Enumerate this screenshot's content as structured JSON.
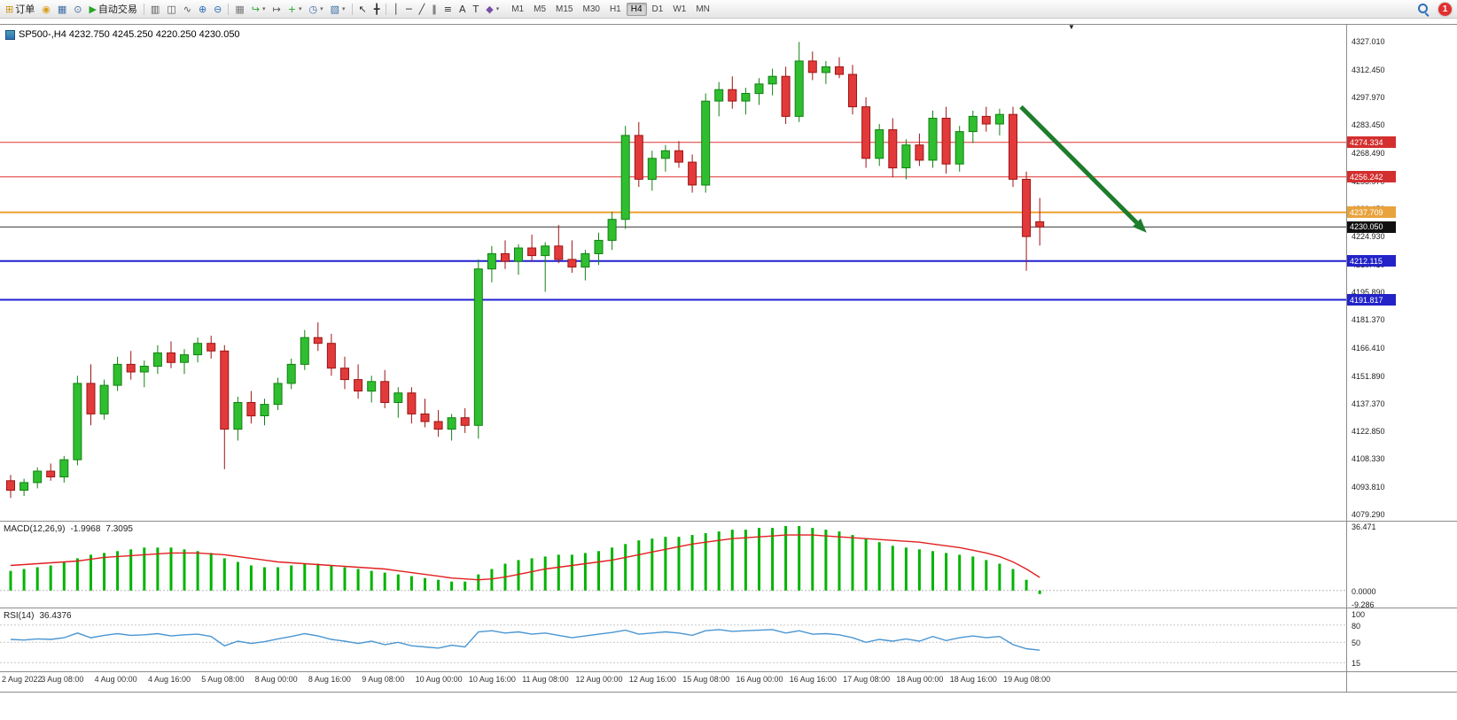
{
  "toolbar": {
    "notification_count": "1",
    "timeframes": [
      "M1",
      "M5",
      "M15",
      "M30",
      "H1",
      "H4",
      "D1",
      "W1",
      "MN"
    ],
    "active_timeframe": "H4",
    "tools": [
      {
        "name": "new-order-button",
        "glyph": "⊞",
        "color": "#C89010",
        "label": "订单"
      },
      {
        "name": "alerts-button",
        "glyph": "◉",
        "color": "#D8A020"
      },
      {
        "name": "market-watch-button",
        "glyph": "▦",
        "color": "#3A6EA5"
      },
      {
        "name": "data-window-button",
        "glyph": "⊙",
        "color": "#3A6EA5"
      },
      {
        "name": "autotrade-button",
        "glyph": "▶",
        "color": "#28A428",
        "label": "自动交易"
      },
      {
        "sep": true
      },
      {
        "name": "bar-chart-button",
        "glyph": "▥",
        "color": "#555555"
      },
      {
        "name": "candlestick-chart-button",
        "glyph": "◫",
        "color": "#555555"
      },
      {
        "name": "line-chart-button",
        "glyph": "∿",
        "color": "#555555"
      },
      {
        "name": "zoom-in-button",
        "glyph": "⊕",
        "color": "#2C6FBB"
      },
      {
        "name": "zoom-out-button",
        "glyph": "⊖",
        "color": "#2C6FBB"
      },
      {
        "sep": true
      },
      {
        "name": "tile-windows-button",
        "glyph": "▦",
        "color": "#777777"
      },
      {
        "name": "auto-scroll-button",
        "glyph": "↪",
        "color": "#28A428",
        "dropdown": true
      },
      {
        "name": "chart-shift-button",
        "glyph": "↦",
        "color": "#555555"
      },
      {
        "name": "indicators-button",
        "glyph": "+",
        "color": "#28A428",
        "dropdown": true
      },
      {
        "name": "periods-button",
        "glyph": "◷",
        "color": "#3A6EA5",
        "dropdown": true
      },
      {
        "name": "templates-button",
        "glyph": "▧",
        "color": "#3A6EA5",
        "dropdown": true
      },
      {
        "sep": true
      },
      {
        "name": "cursor-button",
        "glyph": "↖",
        "color": "#333333"
      },
      {
        "name": "crosshair-button",
        "glyph": "╋",
        "color": "#333333"
      },
      {
        "sep": true
      },
      {
        "name": "vertical-line-button",
        "glyph": "│",
        "color": "#333333"
      },
      {
        "name": "horizontal-line-button",
        "glyph": "─",
        "color": "#333333"
      },
      {
        "name": "trendline-button",
        "glyph": "╱",
        "color": "#333333"
      },
      {
        "name": "channel-button",
        "glyph": "∥",
        "color": "#333333"
      },
      {
        "name": "fibonacci-button",
        "glyph": "≡",
        "color": "#333333"
      },
      {
        "name": "text-button",
        "glyph": "A",
        "color": "#333333"
      },
      {
        "name": "label-button",
        "glyph": "T",
        "color": "#333333"
      },
      {
        "name": "arrows-button",
        "glyph": "◆",
        "color": "#7A4EA8",
        "dropdown": true
      }
    ]
  },
  "chart": {
    "info_line": "SP500-,H4 4232.750 4245.250 4220.250 4230.050",
    "shift_marker": "▼"
  },
  "chart_data": {
    "type": "candlestick",
    "symbol": "SP500-",
    "timeframe": "H4",
    "title": "SP500-,H4",
    "ohlc_current": {
      "open": 4232.75,
      "high": 4245.25,
      "low": 4220.25,
      "close": 4230.05
    },
    "ylim": [
      4076,
      4336
    ],
    "colors": {
      "up": "#2FBE2F",
      "up_border": "#128212",
      "down": "#E23A3A",
      "down_border": "#9E1414",
      "macd_hist": "#00B400",
      "macd_signal": "#E02020",
      "rsi_line": "#4A96D2",
      "red_level": "#E03030",
      "orange_level": "#F0A030",
      "blue_level": "#2020D0"
    },
    "ohlc": [
      [
        4097,
        4100,
        4088,
        4092
      ],
      [
        4092,
        4098,
        4089,
        4096
      ],
      [
        4096,
        4104,
        4093,
        4102
      ],
      [
        4102,
        4106,
        4097,
        4099
      ],
      [
        4099,
        4110,
        4096,
        4108
      ],
      [
        4108,
        4152,
        4105,
        4148
      ],
      [
        4148,
        4158,
        4126,
        4132
      ],
      [
        4132,
        4150,
        4129,
        4147
      ],
      [
        4147,
        4162,
        4144,
        4158
      ],
      [
        4158,
        4165,
        4150,
        4154
      ],
      [
        4154,
        4160,
        4146,
        4157
      ],
      [
        4157,
        4168,
        4153,
        4164
      ],
      [
        4164,
        4170,
        4156,
        4159
      ],
      [
        4159,
        4166,
        4153,
        4163
      ],
      [
        4163,
        4172,
        4159,
        4169
      ],
      [
        4169,
        4173,
        4161,
        4165
      ],
      [
        4165,
        4168,
        4103,
        4124
      ],
      [
        4124,
        4141,
        4118,
        4138
      ],
      [
        4138,
        4144,
        4127,
        4131
      ],
      [
        4131,
        4140,
        4126,
        4137
      ],
      [
        4137,
        4151,
        4134,
        4148
      ],
      [
        4148,
        4161,
        4145,
        4158
      ],
      [
        4158,
        4176,
        4155,
        4172
      ],
      [
        4172,
        4180,
        4165,
        4169
      ],
      [
        4169,
        4174,
        4152,
        4156
      ],
      [
        4156,
        4162,
        4145,
        4150
      ],
      [
        4150,
        4158,
        4140,
        4144
      ],
      [
        4144,
        4152,
        4138,
        4149
      ],
      [
        4149,
        4155,
        4135,
        4138
      ],
      [
        4138,
        4146,
        4130,
        4143
      ],
      [
        4143,
        4146,
        4127,
        4132
      ],
      [
        4132,
        4140,
        4125,
        4128
      ],
      [
        4128,
        4134,
        4120,
        4124
      ],
      [
        4124,
        4132,
        4118,
        4130
      ],
      [
        4130,
        4135,
        4122,
        4126
      ],
      [
        4126,
        4213,
        4119,
        4208
      ],
      [
        4208,
        4220,
        4201,
        4216
      ],
      [
        4216,
        4223,
        4208,
        4212
      ],
      [
        4212,
        4221,
        4205,
        4219
      ],
      [
        4219,
        4226,
        4212,
        4215
      ],
      [
        4215,
        4222,
        4196,
        4220
      ],
      [
        4220,
        4231,
        4211,
        4213
      ],
      [
        4213,
        4223,
        4206,
        4209
      ],
      [
        4209,
        4218,
        4202,
        4216
      ],
      [
        4216,
        4227,
        4210,
        4223
      ],
      [
        4223,
        4238,
        4218,
        4234
      ],
      [
        4234,
        4283,
        4229,
        4278
      ],
      [
        4278,
        4285,
        4251,
        4255
      ],
      [
        4255,
        4270,
        4249,
        4266
      ],
      [
        4266,
        4273,
        4259,
        4270
      ],
      [
        4270,
        4275,
        4261,
        4264
      ],
      [
        4264,
        4268,
        4248,
        4252
      ],
      [
        4252,
        4300,
        4248,
        4296
      ],
      [
        4296,
        4306,
        4288,
        4302
      ],
      [
        4302,
        4309,
        4292,
        4296
      ],
      [
        4296,
        4303,
        4289,
        4300
      ],
      [
        4300,
        4308,
        4294,
        4305
      ],
      [
        4305,
        4313,
        4299,
        4309
      ],
      [
        4309,
        4314,
        4284,
        4288
      ],
      [
        4288,
        4327,
        4285,
        4317
      ],
      [
        4317,
        4322,
        4307,
        4311
      ],
      [
        4311,
        4317,
        4305,
        4314
      ],
      [
        4314,
        4319,
        4308,
        4310
      ],
      [
        4310,
        4315,
        4289,
        4293
      ],
      [
        4293,
        4298,
        4261,
        4266
      ],
      [
        4266,
        4284,
        4262,
        4281
      ],
      [
        4281,
        4287,
        4256,
        4261
      ],
      [
        4261,
        4276,
        4255,
        4273
      ],
      [
        4273,
        4279,
        4262,
        4265
      ],
      [
        4265,
        4291,
        4261,
        4287
      ],
      [
        4287,
        4293,
        4258,
        4263
      ],
      [
        4263,
        4283,
        4259,
        4280
      ],
      [
        4280,
        4291,
        4274,
        4288
      ],
      [
        4288,
        4293,
        4280,
        4284
      ],
      [
        4284,
        4292,
        4278,
        4289
      ],
      [
        4289,
        4293,
        4251,
        4255
      ],
      [
        4255,
        4259,
        4207,
        4225
      ],
      [
        4232.75,
        4245.25,
        4220.25,
        4230.05
      ]
    ],
    "hlines": [
      {
        "value": 4274.334,
        "label": "4274.334",
        "color": "#E03030",
        "width": 1,
        "badge_bg": "#D32F2F"
      },
      {
        "value": 4256.242,
        "label": "4256.242",
        "color": "#E03030",
        "width": 1,
        "badge_bg": "#D32F2F"
      },
      {
        "value": 4237.709,
        "label": "4237.709",
        "color": "#F0A030",
        "width": 2,
        "badge_bg": "#E8A33D"
      },
      {
        "value": 4212.115,
        "label": "4212.115",
        "color": "#2020D0",
        "width": 2,
        "badge_bg": "#2323C8"
      },
      {
        "value": 4191.817,
        "label": "4191.817",
        "color": "#2020D0",
        "width": 2,
        "badge_bg": "#2323C8"
      }
    ],
    "current_price": {
      "value": 4230.05,
      "label": "4230.050",
      "line_color": "#333333",
      "badge_bg": "#101010"
    },
    "arrow": {
      "from": {
        "index": 75.6,
        "price": 4293
      },
      "to": {
        "index": 85.0,
        "price": 4227
      },
      "color": "#1E7D2C"
    },
    "price_axis_ticks": [
      "4327.010",
      "4312.450",
      "4297.970",
      "4283.450",
      "4268.490",
      "4253.970",
      "4239.450",
      "4224.930",
      "4210.410",
      "4195.890",
      "4181.370",
      "4166.410",
      "4151.890",
      "4137.370",
      "4122.850",
      "4108.330",
      "4093.810",
      "4079.290"
    ],
    "time_axis": [
      {
        "index": 0,
        "label": "2 Aug 2022"
      },
      {
        "index": 4,
        "label": "3 Aug 08:00"
      },
      {
        "index": 8,
        "label": "4 Aug 00:00"
      },
      {
        "index": 12,
        "label": "4 Aug 16:00"
      },
      {
        "index": 16,
        "label": "5 Aug 08:00"
      },
      {
        "index": 20,
        "label": "8 Aug 00:00"
      },
      {
        "index": 24,
        "label": "8 Aug 16:00"
      },
      {
        "index": 28,
        "label": "9 Aug 08:00"
      },
      {
        "index": 32,
        "label": "10 Aug 00:00"
      },
      {
        "index": 36,
        "label": "10 Aug 16:00"
      },
      {
        "index": 40,
        "label": "11 Aug 08:00"
      },
      {
        "index": 44,
        "label": "12 Aug 00:00"
      },
      {
        "index": 48,
        "label": "12 Aug 16:00"
      },
      {
        "index": 52,
        "label": "15 Aug 08:00"
      },
      {
        "index": 56,
        "label": "16 Aug 00:00"
      },
      {
        "index": 60,
        "label": "16 Aug 16:00"
      },
      {
        "index": 64,
        "label": "17 Aug 08:00"
      },
      {
        "index": 68,
        "label": "18 Aug 00:00"
      },
      {
        "index": 72,
        "label": "18 Aug 16:00"
      },
      {
        "index": 76,
        "label": "19 Aug 08:00"
      }
    ],
    "macd": {
      "label": "MACD(12,26,9)",
      "value_main": "-1.9968",
      "value_signal": "7.3095",
      "ylim": [
        -9.5,
        38
      ],
      "axis_labels": [
        {
          "value": 36.471,
          "label": "36.471"
        },
        {
          "value": 0,
          "label": "0.0000"
        },
        {
          "value": -9.286,
          "label": "-9.286"
        }
      ],
      "histogram": [
        11,
        12,
        13,
        14,
        16,
        18,
        20,
        21,
        22,
        23,
        24,
        24,
        24,
        23,
        22,
        21,
        18,
        16,
        14,
        13,
        13,
        14,
        15,
        15,
        14,
        13,
        12,
        11,
        10,
        9,
        8,
        7,
        6,
        5,
        5,
        9,
        12,
        15,
        17,
        18,
        19,
        20,
        20,
        21,
        22,
        24,
        26,
        28,
        29,
        30,
        30,
        31,
        32,
        33,
        34,
        34,
        35,
        35,
        36,
        36,
        35,
        34,
        33,
        31,
        29,
        27,
        25,
        24,
        23,
        22,
        21,
        20,
        19,
        17,
        15,
        12,
        6,
        -2
      ],
      "signal": [
        14,
        14.5,
        15,
        15.5,
        16,
        16.5,
        17.5,
        18.5,
        19,
        19.5,
        20,
        20.5,
        21,
        21,
        21,
        20.5,
        20,
        19,
        18,
        17,
        16,
        15.5,
        15,
        14.5,
        14,
        13.5,
        13,
        12.5,
        12,
        11,
        10,
        9,
        8,
        7,
        6.5,
        6,
        6.5,
        7.5,
        9,
        10.5,
        12,
        13,
        14,
        15,
        16,
        17,
        18.5,
        20,
        21.5,
        23,
        24.5,
        26,
        27,
        28,
        29,
        29.5,
        30,
        30.5,
        31,
        31,
        31,
        30.5,
        30,
        29.5,
        29,
        28.5,
        28,
        27.5,
        27,
        26,
        25,
        24,
        22.5,
        21,
        19,
        16,
        12,
        7.3
      ]
    },
    "rsi": {
      "label": "RSI(14)",
      "value": "36.4376",
      "ylim": [
        0,
        107
      ],
      "levels": [
        80,
        50,
        15
      ],
      "axis_labels": [
        {
          "value": 100,
          "label": "100"
        },
        {
          "value": 80,
          "label": "80"
        },
        {
          "value": 50,
          "label": "50"
        },
        {
          "value": 15,
          "label": "15"
        }
      ],
      "series": [
        55,
        54,
        56,
        55,
        58,
        66,
        58,
        62,
        65,
        62,
        63,
        65,
        61,
        63,
        64,
        60,
        44,
        52,
        48,
        51,
        56,
        60,
        65,
        61,
        55,
        52,
        48,
        52,
        46,
        50,
        44,
        42,
        40,
        45,
        42,
        68,
        70,
        66,
        68,
        64,
        66,
        62,
        58,
        61,
        64,
        67,
        71,
        64,
        66,
        68,
        66,
        62,
        70,
        72,
        69,
        70,
        71,
        72,
        66,
        70,
        64,
        65,
        63,
        58,
        50,
        55,
        52,
        56,
        52,
        60,
        53,
        58,
        61,
        58,
        60,
        46,
        39,
        36.44
      ]
    }
  }
}
